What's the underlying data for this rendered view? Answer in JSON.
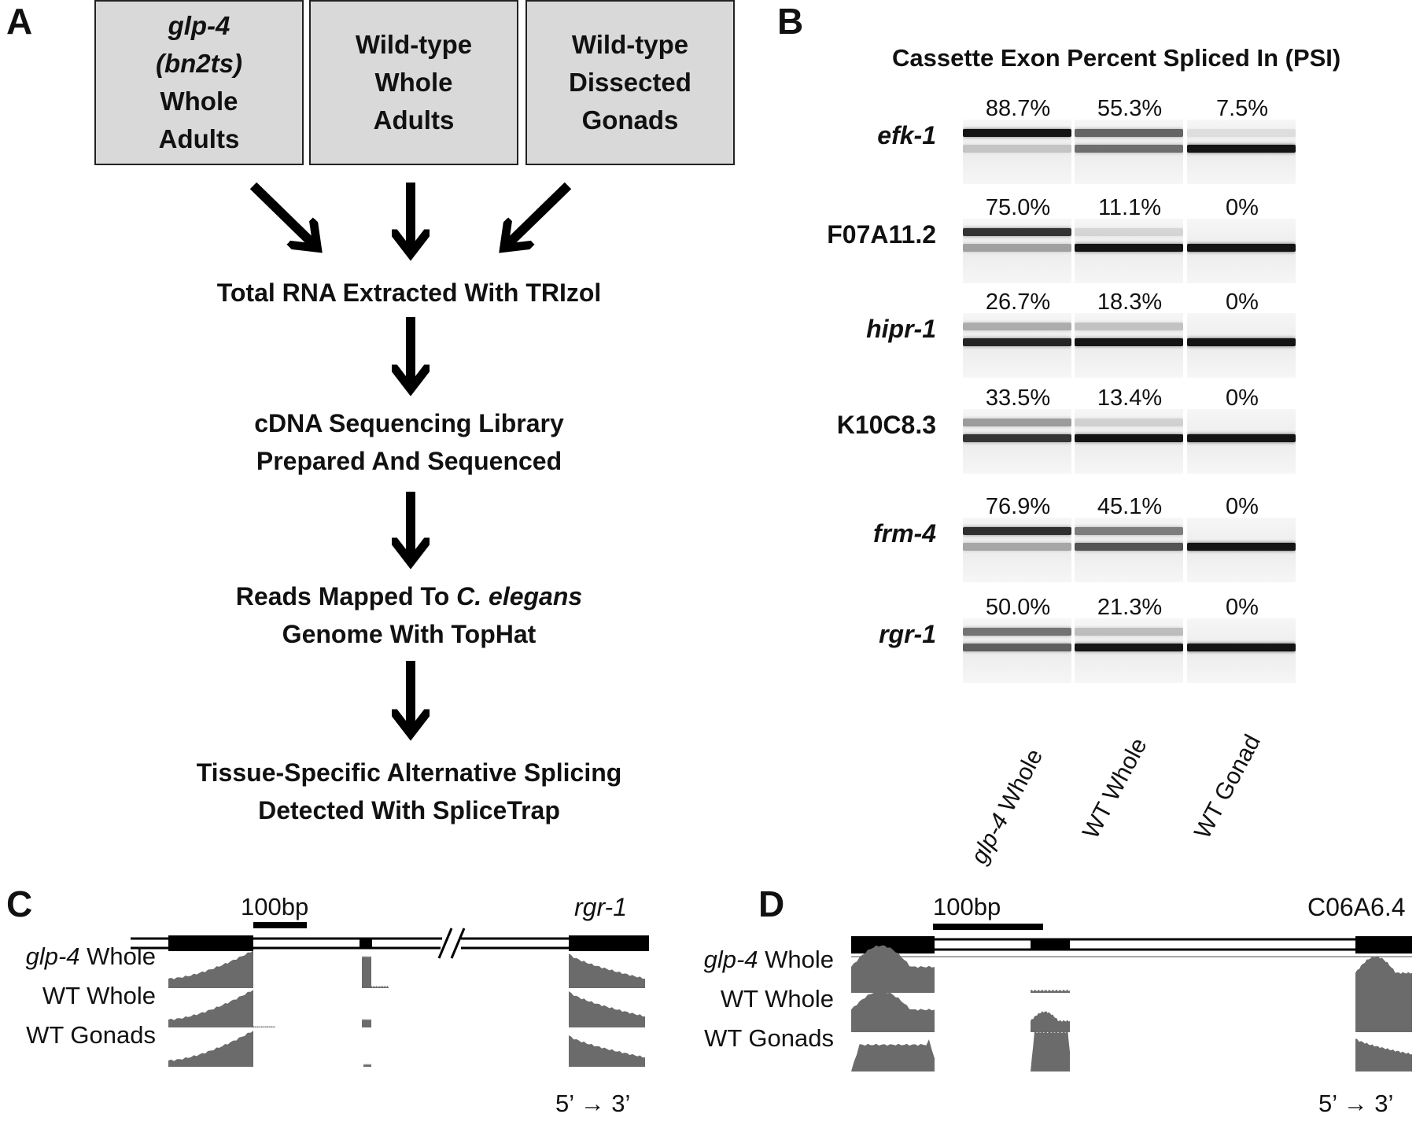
{
  "panelA": {
    "letter": "A",
    "boxes": [
      {
        "lines": [
          "glp-4",
          "(bn2ts)",
          "Whole",
          "Adults"
        ],
        "italic_lines": 2
      },
      {
        "lines": [
          "Wild-type",
          "Whole",
          "Adults"
        ],
        "italic_lines": 0
      },
      {
        "lines": [
          "Wild-type",
          "Dissected",
          "Gonads"
        ],
        "italic_lines": 0
      }
    ],
    "steps": [
      {
        "lines": [
          "Total RNA Extracted With TRIzol"
        ]
      },
      {
        "lines": [
          "cDNA Sequencing Library",
          "Prepared And Sequenced"
        ]
      },
      {
        "line1_pre": "Reads Mapped To ",
        "line1_it": "C. elegans",
        "line2": "Genome With TopHat"
      },
      {
        "lines": [
          "Tissue-Specific Alternative Splicing",
          "Detected With SpliceTrap"
        ]
      }
    ]
  },
  "panelB": {
    "letter": "B",
    "title": "Cassette Exon Percent Spliced In (PSI)",
    "lanes": [
      {
        "pre": "glp-4",
        "post": " Whole"
      },
      {
        "pre": "",
        "post": "WT Whole"
      },
      {
        "pre": "",
        "post": "WT Gonad"
      }
    ],
    "genes": [
      {
        "name": "efk-1",
        "italic": true,
        "psi": [
          {
            "label": "88.7%",
            "value": 88.7
          },
          {
            "label": "55.3%",
            "value": 55.3
          },
          {
            "label": "7.5%",
            "value": 7.5
          }
        ]
      },
      {
        "name": "F07A11.2",
        "italic": false,
        "psi": [
          {
            "label": "75.0%",
            "value": 75.0
          },
          {
            "label": "11.1%",
            "value": 11.1
          },
          {
            "label": "0%",
            "value": 0
          }
        ]
      },
      {
        "name": "hipr-1",
        "italic": true,
        "psi": [
          {
            "label": "26.7%",
            "value": 26.7
          },
          {
            "label": "18.3%",
            "value": 18.3
          },
          {
            "label": "0%",
            "value": 0
          }
        ]
      },
      {
        "name": "K10C8.3",
        "italic": false,
        "psi": [
          {
            "label": "33.5%",
            "value": 33.5
          },
          {
            "label": "13.4%",
            "value": 13.4
          },
          {
            "label": "0%",
            "value": 0
          }
        ]
      },
      {
        "name": "frm-4",
        "italic": true,
        "psi": [
          {
            "label": "76.9%",
            "value": 76.9
          },
          {
            "label": "45.1%",
            "value": 45.1
          },
          {
            "label": "0%",
            "value": 0
          }
        ]
      },
      {
        "name": "rgr-1",
        "italic": true,
        "psi": [
          {
            "label": "50.0%",
            "value": 50.0
          },
          {
            "label": "21.3%",
            "value": 21.3
          },
          {
            "label": "0%",
            "value": 0
          }
        ]
      }
    ]
  },
  "panelC": {
    "letter": "C",
    "scale": "100bp",
    "gene": "rgr-1",
    "tracks": [
      {
        "pre": "glp-4",
        "post": " Whole"
      },
      {
        "pre": "",
        "post": "WT Whole"
      },
      {
        "pre": "",
        "post": "WT Gonads"
      }
    ],
    "direction": "5’ → 3’"
  },
  "panelD": {
    "letter": "D",
    "scale": "100bp",
    "gene": "C06A6.4",
    "tracks": [
      {
        "pre": "glp-4",
        "post": " Whole"
      },
      {
        "pre": "",
        "post": "WT Whole"
      },
      {
        "pre": "",
        "post": "WT Gonads"
      }
    ],
    "direction": "5’ → 3’"
  },
  "colors": {
    "box_fill": "#d9d9d9",
    "coverage": "#6b6b6b",
    "band": "#1a1a1a"
  }
}
